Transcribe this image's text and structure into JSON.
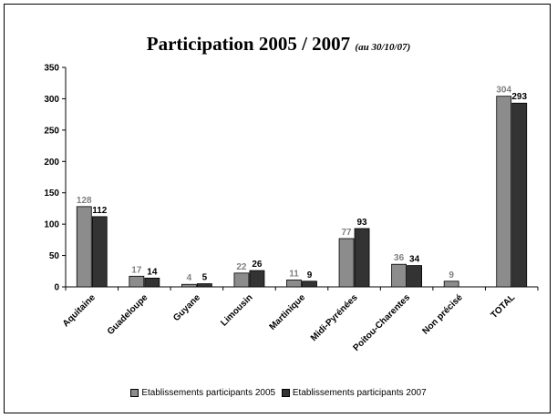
{
  "chart_data": {
    "type": "bar",
    "title": "Participation 2005 / 2007",
    "subtitle": "(au 30/10/07)",
    "categories": [
      "Aquitaine",
      "Guadeloupe",
      "Guyane",
      "Limousin",
      "Martinique",
      "Midi-Pyrénées",
      "Poitou-Charentes",
      "Non précisé",
      "TOTAL"
    ],
    "series": [
      {
        "name": "Etablissements participants 2005",
        "color": "#8c8c8c",
        "label_color": "#808080",
        "values": [
          128,
          17,
          4,
          22,
          11,
          77,
          36,
          9,
          304
        ]
      },
      {
        "name": "Etablissements participants 2007",
        "color": "#333333",
        "label_color": "#000000",
        "values": [
          112,
          14,
          5,
          26,
          9,
          93,
          34,
          null,
          293
        ]
      }
    ],
    "ylim": [
      0,
      350
    ],
    "yticks": [
      0,
      50,
      100,
      150,
      200,
      250,
      300,
      350
    ],
    "xlabel": "",
    "ylabel": "",
    "grid": false,
    "legend_position": "bottom"
  }
}
